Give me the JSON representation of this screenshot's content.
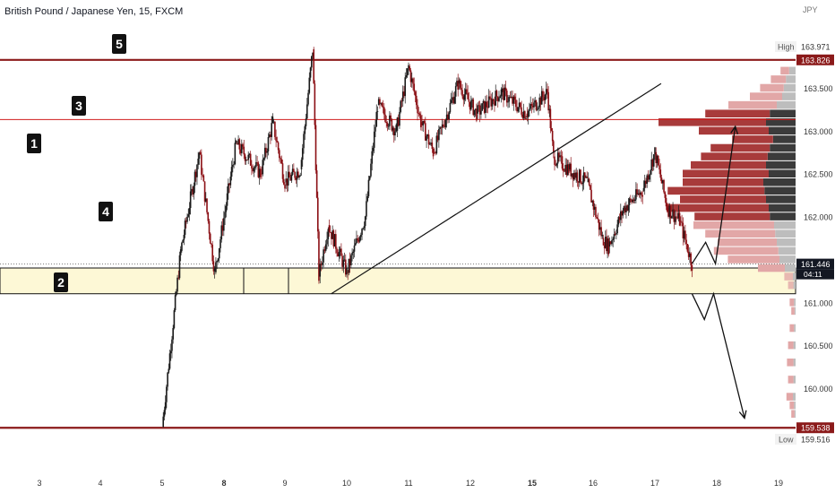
{
  "header": {
    "title": "British Pound / Japanese Yen, 15, FXCM",
    "currency": "JPY"
  },
  "colors": {
    "bull_candle": "#1a1a1a",
    "bear_candle": "#8b0f14",
    "level_line": "#8b1a1a",
    "mid_line": "#d01c1c",
    "zone_fill": "#fdf8d6",
    "price_tag": "#8b1a1a",
    "current_tag": "#131722",
    "vp_dark": "#3b3b3b",
    "vp_red": "#a83b3b",
    "vp_light_red": "#e2a7a7",
    "vp_gray": "#bdbdbd",
    "wave_label_bg": "#111111"
  },
  "chart_data": {
    "type": "line",
    "title": "British Pound / Japanese Yen, 15, FXCM",
    "ylabel": "JPY",
    "ylim": [
      159.4,
      164.08
    ],
    "x_tick_labels": [
      "3",
      "4",
      "5",
      "8",
      "9",
      "10",
      "11",
      "12",
      "15",
      "16",
      "17",
      "18",
      "19"
    ],
    "y_tick_labels": [
      "163.500",
      "163.000",
      "162.500",
      "162.000",
      "161.000",
      "160.500",
      "160.000"
    ],
    "price_tags": {
      "high_label": "High",
      "high_value": "163.971",
      "top_level": "163.826",
      "current_price": "161.446",
      "countdown": "04:11",
      "bottom_level": "159.538",
      "low_label": "Low",
      "low_value": "159.516"
    },
    "levels": {
      "top": 163.826,
      "mid": 163.13,
      "zone_top": 161.4,
      "zone_bottom": 161.1,
      "bottom": 159.538,
      "current": 161.446
    },
    "wave_labels": [
      "1",
      "2",
      "3",
      "4",
      "5"
    ],
    "series": [
      {
        "values": [
          [
            2.0,
            159.55
          ],
          [
            2.3,
            161.6
          ],
          [
            2.6,
            162.75
          ],
          [
            2.85,
            161.35
          ],
          [
            3.2,
            162.85
          ],
          [
            3.6,
            162.5
          ],
          [
            3.8,
            163.1
          ],
          [
            4.0,
            162.4
          ],
          [
            4.25,
            162.55
          ],
          [
            4.45,
            163.95
          ],
          [
            4.55,
            161.3
          ],
          [
            4.7,
            161.9
          ],
          [
            5.0,
            161.35
          ],
          [
            5.3,
            162.0
          ],
          [
            5.5,
            163.3
          ],
          [
            5.8,
            163.0
          ],
          [
            6.0,
            163.75
          ],
          [
            6.2,
            163.1
          ],
          [
            6.4,
            162.75
          ],
          [
            6.8,
            163.55
          ],
          [
            7.1,
            163.2
          ],
          [
            7.5,
            163.45
          ],
          [
            7.9,
            163.2
          ],
          [
            8.25,
            163.45
          ],
          [
            8.35,
            162.7
          ],
          [
            8.6,
            162.55
          ],
          [
            8.9,
            162.4
          ],
          [
            9.15,
            161.75
          ],
          [
            9.25,
            161.65
          ],
          [
            9.5,
            162.1
          ],
          [
            9.8,
            162.3
          ],
          [
            10.0,
            162.75
          ],
          [
            10.2,
            162.1
          ],
          [
            10.4,
            161.95
          ],
          [
            10.6,
            161.45
          ]
        ]
      }
    ],
    "projection": {
      "bullish": [
        [
          10.6,
          161.45
        ],
        [
          10.82,
          161.7
        ],
        [
          10.98,
          161.45
        ],
        [
          11.3,
          163.05
        ]
      ],
      "bearish": [
        [
          10.6,
          161.1
        ],
        [
          10.8,
          160.8
        ],
        [
          10.95,
          161.1
        ],
        [
          11.45,
          159.65
        ]
      ]
    },
    "trendline": [
      [
        4.75,
        161.1
      ],
      [
        10.1,
        163.55
      ]
    ],
    "volume_profile": [
      {
        "price": 163.7,
        "a": 0.08,
        "b": 0.12
      },
      {
        "price": 163.6,
        "a": 0.14,
        "b": 0.18
      },
      {
        "price": 163.5,
        "a": 0.22,
        "b": 0.22
      },
      {
        "price": 163.4,
        "a": 0.3,
        "b": 0.25
      },
      {
        "price": 163.3,
        "a": 0.45,
        "b": 0.35
      },
      {
        "price": 163.2,
        "a": 0.6,
        "b": 0.48
      },
      {
        "price": 163.1,
        "a": 1.0,
        "b": 0.55
      },
      {
        "price": 163.0,
        "a": 0.65,
        "b": 0.5
      },
      {
        "price": 162.9,
        "a": 0.38,
        "b": 0.42
      },
      {
        "price": 162.8,
        "a": 0.55,
        "b": 0.48
      },
      {
        "price": 162.7,
        "a": 0.62,
        "b": 0.52
      },
      {
        "price": 162.6,
        "a": 0.7,
        "b": 0.55
      },
      {
        "price": 162.5,
        "a": 0.8,
        "b": 0.5
      },
      {
        "price": 162.4,
        "a": 0.75,
        "b": 0.6
      },
      {
        "price": 162.3,
        "a": 0.9,
        "b": 0.58
      },
      {
        "price": 162.2,
        "a": 0.8,
        "b": 0.55
      },
      {
        "price": 162.1,
        "a": 0.95,
        "b": 0.5
      },
      {
        "price": 162.0,
        "a": 0.7,
        "b": 0.48
      },
      {
        "price": 161.9,
        "a": 0.75,
        "b": 0.4
      },
      {
        "price": 161.8,
        "a": 0.65,
        "b": 0.38
      },
      {
        "price": 161.7,
        "a": 0.55,
        "b": 0.35
      },
      {
        "price": 161.6,
        "a": 0.6,
        "b": 0.32
      },
      {
        "price": 161.5,
        "a": 0.48,
        "b": 0.3
      },
      {
        "price": 161.4,
        "a": 0.25,
        "b": 0.2
      },
      {
        "price": 161.3,
        "a": 0.08,
        "b": 0.05
      },
      {
        "price": 161.2,
        "a": 0.05,
        "b": 0.04
      },
      {
        "price": 161.0,
        "a": 0.04,
        "b": 0.03
      },
      {
        "price": 160.9,
        "a": 0.03,
        "b": 0.02
      },
      {
        "price": 160.7,
        "a": 0.04,
        "b": 0.03
      },
      {
        "price": 160.5,
        "a": 0.05,
        "b": 0.04
      },
      {
        "price": 160.3,
        "a": 0.06,
        "b": 0.04
      },
      {
        "price": 160.1,
        "a": 0.05,
        "b": 0.04
      },
      {
        "price": 159.9,
        "a": 0.06,
        "b": 0.05
      },
      {
        "price": 159.8,
        "a": 0.04,
        "b": 0.03
      },
      {
        "price": 159.7,
        "a": 0.03,
        "b": 0.02
      }
    ],
    "grid": false
  }
}
